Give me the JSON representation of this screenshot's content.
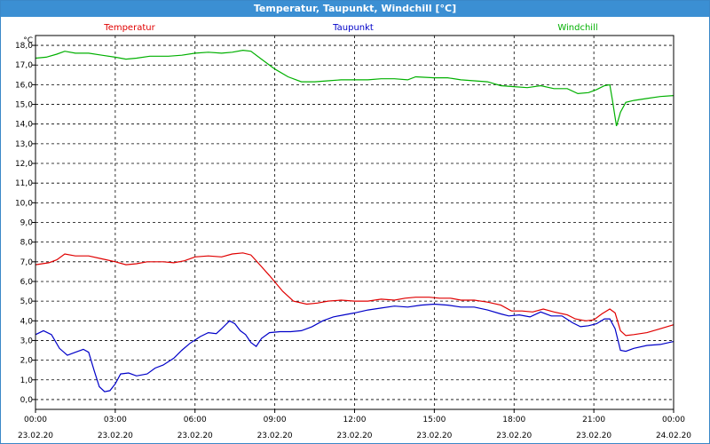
{
  "window": {
    "title": "Temperatur, Taupunkt, Windchill [°C]"
  },
  "chart_data": {
    "type": "line",
    "title": "Temperatur, Taupunkt, Windchill [°C]",
    "y_unit": "°C",
    "ylim": [
      -0.5,
      18.5
    ],
    "xlim": [
      0,
      24
    ],
    "grid": true,
    "legend_position": "top",
    "y_ticks": [
      {
        "v": 0,
        "label": "0,0"
      },
      {
        "v": 1,
        "label": "1,0"
      },
      {
        "v": 2,
        "label": "2,0"
      },
      {
        "v": 3,
        "label": "3,0"
      },
      {
        "v": 4,
        "label": "4,0"
      },
      {
        "v": 5,
        "label": "5,0"
      },
      {
        "v": 6,
        "label": "6,0"
      },
      {
        "v": 7,
        "label": "7,0"
      },
      {
        "v": 8,
        "label": "8,0"
      },
      {
        "v": 9,
        "label": "9,0"
      },
      {
        "v": 10,
        "label": "10,0"
      },
      {
        "v": 11,
        "label": "11,0"
      },
      {
        "v": 12,
        "label": "12,0"
      },
      {
        "v": 13,
        "label": "13,0"
      },
      {
        "v": 14,
        "label": "14,0"
      },
      {
        "v": 15,
        "label": "15,0"
      },
      {
        "v": 16,
        "label": "16,0"
      },
      {
        "v": 17,
        "label": "17,0"
      },
      {
        "v": 18,
        "label": "18,0"
      }
    ],
    "x_ticks": [
      {
        "h": 0,
        "time": "00:00",
        "date": "23.02.20"
      },
      {
        "h": 3,
        "time": "03:00",
        "date": "23.02.20"
      },
      {
        "h": 6,
        "time": "06:00",
        "date": "23.02.20"
      },
      {
        "h": 9,
        "time": "09:00",
        "date": "23.02.20"
      },
      {
        "h": 12,
        "time": "12:00",
        "date": "23.02.20"
      },
      {
        "h": 15,
        "time": "15:00",
        "date": "23.02.20"
      },
      {
        "h": 18,
        "time": "18:00",
        "date": "23.02.20"
      },
      {
        "h": 21,
        "time": "21:00",
        "date": "23.02.20"
      },
      {
        "h": 24,
        "time": "00:00",
        "date": "24.02.20"
      }
    ],
    "series": [
      {
        "name": "Temperatur",
        "color": "#e00000",
        "points": [
          [
            0,
            6.85
          ],
          [
            0.5,
            6.95
          ],
          [
            0.8,
            7.1
          ],
          [
            1.1,
            7.4
          ],
          [
            1.5,
            7.3
          ],
          [
            2.0,
            7.3
          ],
          [
            2.5,
            7.15
          ],
          [
            3.0,
            7.0
          ],
          [
            3.4,
            6.85
          ],
          [
            3.8,
            6.9
          ],
          [
            4.2,
            7.0
          ],
          [
            4.8,
            7.0
          ],
          [
            5.2,
            6.95
          ],
          [
            5.6,
            7.05
          ],
          [
            6.0,
            7.25
          ],
          [
            6.5,
            7.3
          ],
          [
            7.0,
            7.25
          ],
          [
            7.4,
            7.4
          ],
          [
            7.8,
            7.45
          ],
          [
            8.1,
            7.35
          ],
          [
            8.4,
            6.9
          ],
          [
            8.8,
            6.3
          ],
          [
            9.3,
            5.5
          ],
          [
            9.7,
            5.0
          ],
          [
            10.2,
            4.85
          ],
          [
            10.6,
            4.9
          ],
          [
            11.0,
            5.0
          ],
          [
            11.5,
            5.05
          ],
          [
            12.0,
            5.0
          ],
          [
            12.5,
            5.0
          ],
          [
            13.0,
            5.1
          ],
          [
            13.5,
            5.05
          ],
          [
            13.9,
            5.15
          ],
          [
            14.3,
            5.2
          ],
          [
            14.8,
            5.2
          ],
          [
            15.2,
            5.15
          ],
          [
            15.6,
            5.15
          ],
          [
            16.0,
            5.05
          ],
          [
            16.5,
            5.05
          ],
          [
            17.0,
            4.95
          ],
          [
            17.5,
            4.8
          ],
          [
            17.9,
            4.5
          ],
          [
            18.3,
            4.5
          ],
          [
            18.7,
            4.45
          ],
          [
            19.1,
            4.6
          ],
          [
            19.5,
            4.45
          ],
          [
            20.0,
            4.3
          ],
          [
            20.3,
            4.1
          ],
          [
            20.7,
            4.0
          ],
          [
            21.0,
            4.05
          ],
          [
            21.3,
            4.35
          ],
          [
            21.6,
            4.6
          ],
          [
            21.8,
            4.4
          ],
          [
            22.0,
            3.5
          ],
          [
            22.2,
            3.25
          ],
          [
            22.5,
            3.3
          ],
          [
            23.0,
            3.4
          ],
          [
            23.5,
            3.6
          ],
          [
            24.0,
            3.8
          ]
        ]
      },
      {
        "name": "Taupunkt",
        "color": "#0000c8",
        "points": [
          [
            0,
            3.3
          ],
          [
            0.3,
            3.5
          ],
          [
            0.6,
            3.3
          ],
          [
            0.9,
            2.6
          ],
          [
            1.2,
            2.25
          ],
          [
            1.5,
            2.4
          ],
          [
            1.8,
            2.55
          ],
          [
            2.0,
            2.4
          ],
          [
            2.2,
            1.5
          ],
          [
            2.4,
            0.65
          ],
          [
            2.6,
            0.4
          ],
          [
            2.8,
            0.45
          ],
          [
            3.0,
            0.8
          ],
          [
            3.2,
            1.3
          ],
          [
            3.5,
            1.35
          ],
          [
            3.8,
            1.2
          ],
          [
            4.2,
            1.3
          ],
          [
            4.5,
            1.6
          ],
          [
            4.8,
            1.75
          ],
          [
            5.2,
            2.1
          ],
          [
            5.5,
            2.5
          ],
          [
            5.8,
            2.85
          ],
          [
            6.2,
            3.2
          ],
          [
            6.5,
            3.4
          ],
          [
            6.8,
            3.35
          ],
          [
            7.0,
            3.6
          ],
          [
            7.3,
            4.0
          ],
          [
            7.5,
            3.85
          ],
          [
            7.7,
            3.5
          ],
          [
            7.9,
            3.3
          ],
          [
            8.1,
            2.9
          ],
          [
            8.3,
            2.7
          ],
          [
            8.5,
            3.1
          ],
          [
            8.8,
            3.4
          ],
          [
            9.2,
            3.45
          ],
          [
            9.6,
            3.45
          ],
          [
            10.0,
            3.5
          ],
          [
            10.4,
            3.7
          ],
          [
            10.8,
            4.0
          ],
          [
            11.2,
            4.2
          ],
          [
            11.6,
            4.3
          ],
          [
            12.0,
            4.4
          ],
          [
            12.5,
            4.55
          ],
          [
            13.0,
            4.65
          ],
          [
            13.5,
            4.75
          ],
          [
            14.0,
            4.7
          ],
          [
            14.5,
            4.8
          ],
          [
            15.0,
            4.85
          ],
          [
            15.5,
            4.8
          ],
          [
            16.0,
            4.7
          ],
          [
            16.5,
            4.7
          ],
          [
            17.0,
            4.55
          ],
          [
            17.5,
            4.35
          ],
          [
            17.8,
            4.25
          ],
          [
            18.2,
            4.3
          ],
          [
            18.6,
            4.2
          ],
          [
            19.0,
            4.45
          ],
          [
            19.4,
            4.25
          ],
          [
            19.8,
            4.25
          ],
          [
            20.2,
            3.9
          ],
          [
            20.5,
            3.7
          ],
          [
            20.8,
            3.75
          ],
          [
            21.1,
            3.85
          ],
          [
            21.4,
            4.1
          ],
          [
            21.6,
            4.1
          ],
          [
            21.8,
            3.6
          ],
          [
            22.0,
            2.5
          ],
          [
            22.2,
            2.45
          ],
          [
            22.5,
            2.6
          ],
          [
            23.0,
            2.75
          ],
          [
            23.5,
            2.8
          ],
          [
            24.0,
            2.95
          ]
        ]
      },
      {
        "name": "Windchill",
        "color": "#00b000",
        "points": [
          [
            0,
            17.35
          ],
          [
            0.4,
            17.4
          ],
          [
            0.8,
            17.55
          ],
          [
            1.1,
            17.7
          ],
          [
            1.5,
            17.6
          ],
          [
            2.0,
            17.6
          ],
          [
            2.5,
            17.5
          ],
          [
            3.0,
            17.4
          ],
          [
            3.4,
            17.3
          ],
          [
            3.8,
            17.35
          ],
          [
            4.3,
            17.45
          ],
          [
            5.0,
            17.45
          ],
          [
            5.5,
            17.5
          ],
          [
            6.0,
            17.6
          ],
          [
            6.5,
            17.65
          ],
          [
            7.0,
            17.6
          ],
          [
            7.4,
            17.65
          ],
          [
            7.8,
            17.75
          ],
          [
            8.1,
            17.7
          ],
          [
            8.5,
            17.3
          ],
          [
            9.0,
            16.8
          ],
          [
            9.5,
            16.4
          ],
          [
            10.0,
            16.15
          ],
          [
            10.5,
            16.15
          ],
          [
            11.0,
            16.2
          ],
          [
            11.5,
            16.25
          ],
          [
            12.0,
            16.25
          ],
          [
            12.5,
            16.25
          ],
          [
            13.0,
            16.3
          ],
          [
            13.5,
            16.3
          ],
          [
            14.0,
            16.25
          ],
          [
            14.3,
            16.4
          ],
          [
            15.0,
            16.35
          ],
          [
            15.5,
            16.35
          ],
          [
            16.0,
            16.25
          ],
          [
            16.5,
            16.2
          ],
          [
            17.0,
            16.15
          ],
          [
            17.5,
            15.95
          ],
          [
            18.0,
            15.9
          ],
          [
            18.5,
            15.85
          ],
          [
            19.0,
            15.95
          ],
          [
            19.5,
            15.8
          ],
          [
            20.0,
            15.8
          ],
          [
            20.4,
            15.55
          ],
          [
            20.8,
            15.6
          ],
          [
            21.1,
            15.75
          ],
          [
            21.4,
            15.95
          ],
          [
            21.6,
            16.0
          ],
          [
            21.7,
            15.2
          ],
          [
            21.85,
            13.9
          ],
          [
            22.0,
            14.6
          ],
          [
            22.2,
            15.1
          ],
          [
            22.5,
            15.2
          ],
          [
            23.0,
            15.3
          ],
          [
            23.5,
            15.4
          ],
          [
            24.0,
            15.45
          ]
        ]
      }
    ]
  }
}
